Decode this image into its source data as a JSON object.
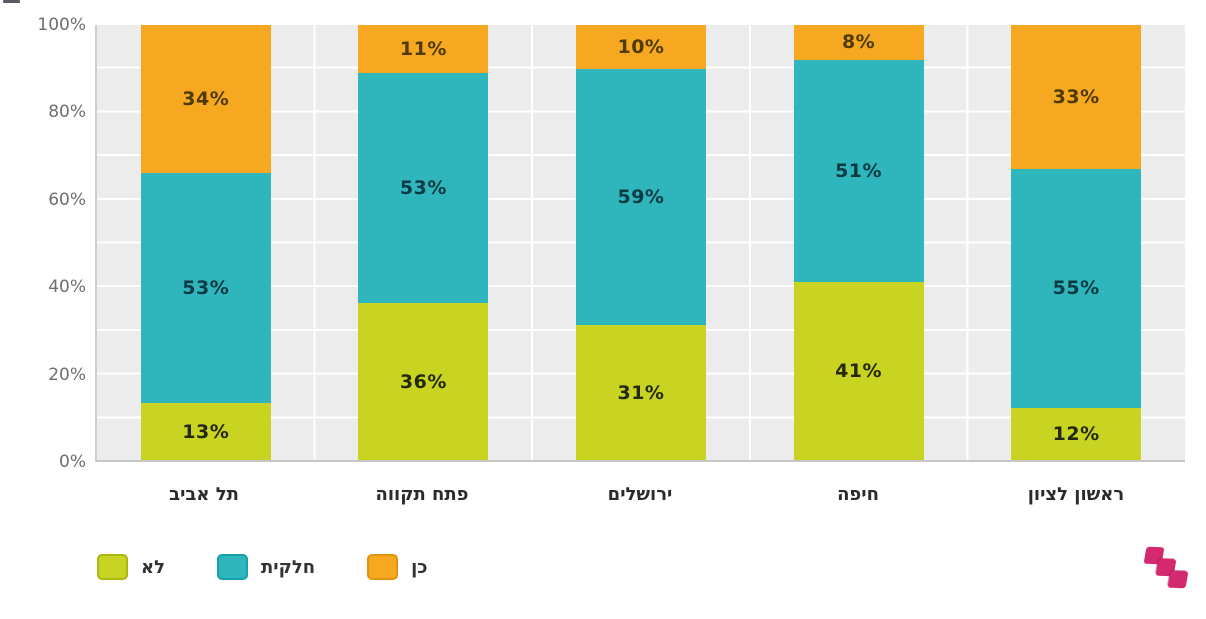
{
  "chart_data": {
    "type": "bar",
    "stacked": true,
    "orientation": "vertical",
    "categories": [
      "תל אביב",
      "פתח תקווה",
      "ירושלים",
      "חיפה",
      "ראשון לציון"
    ],
    "series": [
      {
        "name": "לא",
        "color": "#c9d322",
        "border_color": "#aab90f",
        "label_color": "#23290a",
        "values": [
          13,
          36,
          31,
          41,
          12
        ]
      },
      {
        "name": "חלקית",
        "color": "#2fb6bc",
        "border_color": "#17a0a9",
        "label_color": "#0b3a43",
        "values": [
          53,
          53,
          59,
          51,
          55
        ]
      },
      {
        "name": "כן",
        "color": "#f6a820",
        "border_color": "#e0950c",
        "label_color": "#4e3a03",
        "values": [
          34,
          11,
          10,
          8,
          33
        ]
      }
    ],
    "y_ticks": [
      "0%",
      "20%",
      "40%",
      "60%",
      "80%",
      "100%"
    ],
    "ylim": [
      0,
      100
    ],
    "value_suffix": "%",
    "grid": {
      "horizontal_step_pct": 10,
      "line_color": "#ffffff",
      "plot_bg": "#ececec"
    },
    "legend_position": "bottom-left"
  },
  "logo": {
    "name": "pink-steps-logo",
    "color": "#d4296f"
  }
}
